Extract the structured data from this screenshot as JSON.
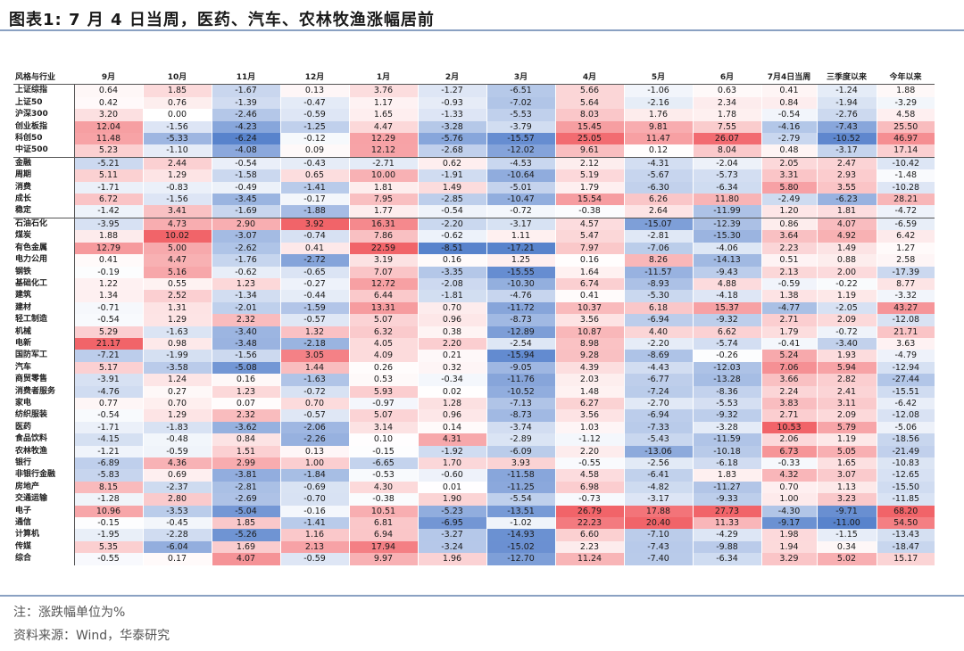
{
  "title": "图表1:  7 月  4 日当周，医药、汽车、农林牧渔涨幅居前",
  "note": "注：涨跌幅单位为%",
  "source": "资料来源：Wind，华泰研究",
  "chart_data": {
    "type": "heatmap",
    "row_header": "风格与行业",
    "columns": [
      "9月",
      "10月",
      "11月",
      "12月",
      "1月",
      "2月",
      "3月",
      "4月",
      "5月",
      "6月",
      "7月4日当周",
      "三季度以来",
      "今年以来"
    ],
    "rows": [
      {
        "name": "上证综指",
        "values": [
          0.64,
          1.85,
          -1.67,
          0.13,
          3.76,
          -1.27,
          -6.51,
          5.66,
          -1.06,
          0.63,
          0.41,
          -1.24,
          1.88
        ]
      },
      {
        "name": "上证50",
        "values": [
          0.42,
          0.76,
          -1.39,
          -0.47,
          1.17,
          -0.93,
          -7.02,
          5.64,
          -2.16,
          2.34,
          0.84,
          -1.94,
          -3.29
        ]
      },
      {
        "name": "沪深300",
        "values": [
          3.2,
          0.0,
          -2.46,
          -0.59,
          1.65,
          -1.33,
          -5.53,
          8.03,
          1.76,
          1.78,
          -0.54,
          -2.76,
          4.58
        ]
      },
      {
        "name": "创业板指",
        "values": [
          12.04,
          -1.56,
          -4.23,
          -1.25,
          4.47,
          -3.28,
          -3.79,
          15.45,
          9.81,
          7.55,
          -4.16,
          -7.43,
          25.5
        ]
      },
      {
        "name": "科创50",
        "values": [
          11.48,
          -5.33,
          -6.24,
          -0.12,
          12.29,
          -5.76,
          -15.57,
          25.05,
          11.47,
          26.07,
          -2.79,
          -10.52,
          46.97
        ]
      },
      {
        "name": "中证500",
        "values": [
          5.23,
          -1.1,
          -4.08,
          0.09,
          12.12,
          -2.68,
          -12.02,
          9.61,
          0.12,
          8.04,
          0.48,
          -3.17,
          17.14
        ]
      },
      {
        "name": "金融",
        "values": [
          -5.21,
          2.44,
          -0.54,
          -0.43,
          -2.71,
          0.62,
          -4.53,
          2.12,
          -4.31,
          -2.04,
          2.05,
          2.47,
          -10.42
        ]
      },
      {
        "name": "周期",
        "values": [
          5.11,
          1.29,
          -1.58,
          0.65,
          10.0,
          -1.91,
          -10.64,
          5.19,
          -5.67,
          -5.73,
          3.31,
          2.93,
          -1.48
        ]
      },
      {
        "name": "消费",
        "values": [
          -1.71,
          -0.83,
          -0.49,
          -1.41,
          1.81,
          1.49,
          -5.01,
          1.79,
          -6.3,
          -6.34,
          5.8,
          3.55,
          -10.28
        ]
      },
      {
        "name": "成长",
        "values": [
          6.72,
          -1.56,
          -3.45,
          -0.17,
          7.95,
          -2.85,
          -10.47,
          15.54,
          6.26,
          11.8,
          -2.49,
          -6.23,
          28.21
        ]
      },
      {
        "name": "稳定",
        "values": [
          -1.42,
          3.41,
          -1.69,
          -1.88,
          1.77,
          -0.54,
          -0.72,
          -0.38,
          2.64,
          -11.99,
          1.2,
          1.81,
          -4.72
        ]
      },
      {
        "name": "石油石化",
        "values": [
          -3.95,
          4.73,
          2.9,
          3.92,
          16.31,
          -2.2,
          -3.17,
          4.57,
          -15.07,
          -12.39,
          0.86,
          4.07,
          -6.59
        ]
      },
      {
        "name": "煤炭",
        "values": [
          1.88,
          10.02,
          -3.07,
          -0.74,
          7.86,
          -0.62,
          1.11,
          5.47,
          -2.81,
          -15.3,
          3.64,
          4.92,
          6.42
        ]
      },
      {
        "name": "有色金属",
        "values": [
          12.79,
          5.0,
          -2.62,
          0.41,
          22.59,
          -8.51,
          -17.21,
          7.97,
          -7.06,
          -4.06,
          2.23,
          1.49,
          1.27
        ]
      },
      {
        "name": "电力公用",
        "values": [
          0.41,
          4.47,
          -1.76,
          -2.72,
          3.19,
          0.16,
          1.25,
          0.16,
          8.26,
          -14.13,
          0.51,
          0.88,
          2.58
        ]
      },
      {
        "name": "钢铁",
        "values": [
          -0.19,
          5.16,
          -0.62,
          -0.65,
          7.07,
          -3.35,
          -15.55,
          1.64,
          -11.57,
          -9.43,
          2.13,
          2.0,
          -17.39
        ]
      },
      {
        "name": "基础化工",
        "values": [
          1.22,
          0.55,
          1.23,
          -0.27,
          12.72,
          -2.08,
          -10.3,
          6.74,
          -8.93,
          4.88,
          -0.59,
          -0.22,
          8.77
        ]
      },
      {
        "name": "建筑",
        "values": [
          1.34,
          2.52,
          -1.34,
          -0.44,
          6.44,
          -1.81,
          -4.76,
          0.41,
          -5.3,
          -4.18,
          1.38,
          1.19,
          -3.32
        ]
      },
      {
        "name": "建材",
        "values": [
          -0.71,
          1.31,
          -2.01,
          -1.59,
          13.31,
          0.7,
          -11.72,
          10.37,
          6.18,
          15.37,
          -4.77,
          -2.05,
          43.27
        ]
      },
      {
        "name": "轻工制造",
        "values": [
          -0.54,
          1.29,
          2.32,
          -0.57,
          5.07,
          0.96,
          -8.73,
          3.56,
          -6.94,
          -9.32,
          2.71,
          2.09,
          -12.08
        ]
      },
      {
        "name": "机械",
        "values": [
          5.29,
          -1.63,
          -3.4,
          1.32,
          6.32,
          0.38,
          -12.89,
          10.87,
          4.4,
          6.62,
          1.79,
          -0.72,
          21.71
        ]
      },
      {
        "name": "电新",
        "values": [
          21.17,
          0.98,
          -3.48,
          -2.18,
          4.05,
          2.2,
          -2.54,
          8.98,
          -2.2,
          -5.74,
          -0.41,
          -3.4,
          3.63
        ]
      },
      {
        "name": "国防军工",
        "values": [
          -7.21,
          -1.99,
          -1.56,
          3.05,
          4.09,
          0.21,
          -15.94,
          9.28,
          -8.69,
          -0.26,
          5.24,
          1.93,
          -4.79
        ]
      },
      {
        "name": "汽车",
        "values": [
          5.17,
          -3.58,
          -5.08,
          1.44,
          0.26,
          0.32,
          -9.05,
          4.39,
          -4.43,
          -12.03,
          7.06,
          5.94,
          -12.94
        ]
      },
      {
        "name": "商贸零售",
        "values": [
          -3.91,
          1.24,
          0.16,
          -1.63,
          0.53,
          -0.34,
          -11.76,
          2.03,
          -6.77,
          -13.28,
          3.66,
          2.82,
          -27.44
        ]
      },
      {
        "name": "消费者服务",
        "values": [
          -4.76,
          0.27,
          1.23,
          -0.72,
          5.93,
          0.02,
          -10.52,
          1.48,
          -7.24,
          -8.36,
          2.24,
          2.41,
          -15.51
        ]
      },
      {
        "name": "家电",
        "values": [
          0.77,
          0.7,
          0.07,
          0.7,
          -0.97,
          1.28,
          -7.13,
          6.27,
          -2.7,
          -5.53,
          3.83,
          3.11,
          -6.42
        ]
      },
      {
        "name": "纺织服装",
        "values": [
          -0.54,
          1.29,
          2.32,
          -0.57,
          5.07,
          0.96,
          -8.73,
          3.56,
          -6.94,
          -9.32,
          2.71,
          2.09,
          -12.08
        ]
      },
      {
        "name": "医药",
        "values": [
          -1.71,
          -1.83,
          -3.62,
          -2.06,
          3.14,
          0.14,
          -3.74,
          1.03,
          -7.33,
          -3.28,
          10.53,
          5.79,
          -5.06
        ]
      },
      {
        "name": "食品饮料",
        "values": [
          -4.15,
          -0.48,
          0.84,
          -2.26,
          0.1,
          4.31,
          -2.89,
          -1.12,
          -5.43,
          -11.59,
          2.06,
          1.19,
          -18.56
        ]
      },
      {
        "name": "农林牧渔",
        "values": [
          -1.21,
          -0.59,
          1.51,
          0.13,
          -0.15,
          -1.92,
          -6.09,
          2.2,
          -13.06,
          -10.18,
          6.73,
          5.05,
          -21.49
        ]
      },
      {
        "name": "银行",
        "values": [
          -6.89,
          4.36,
          2.99,
          1.0,
          -6.65,
          1.7,
          3.93,
          -0.55,
          -2.56,
          -6.18,
          -0.33,
          1.65,
          -10.83
        ]
      },
      {
        "name": "非银行金融",
        "values": [
          -5.83,
          0.69,
          -3.81,
          -1.84,
          -0.53,
          -0.6,
          -11.58,
          4.58,
          -6.41,
          1.83,
          4.32,
          3.07,
          -12.65
        ]
      },
      {
        "name": "房地产",
        "values": [
          8.15,
          -2.37,
          -2.81,
          -0.69,
          4.3,
          0.01,
          -11.25,
          6.98,
          -4.82,
          -11.27,
          0.7,
          1.13,
          -15.5
        ]
      },
      {
        "name": "交通运输",
        "values": [
          -1.28,
          2.8,
          -2.69,
          -0.7,
          -0.38,
          1.9,
          -5.54,
          -0.73,
          -3.17,
          -9.33,
          1.0,
          3.23,
          -11.85
        ]
      },
      {
        "name": "电子",
        "values": [
          10.96,
          -3.53,
          -5.04,
          -0.16,
          10.51,
          -5.23,
          -13.51,
          26.79,
          17.88,
          27.73,
          -4.3,
          -9.71,
          68.2
        ]
      },
      {
        "name": "通信",
        "values": [
          -0.15,
          -0.45,
          1.85,
          -1.41,
          6.81,
          -6.95,
          -1.02,
          22.23,
          20.4,
          11.33,
          -9.17,
          -11.0,
          54.5
        ]
      },
      {
        "name": "计算机",
        "values": [
          -1.95,
          -2.28,
          -5.26,
          1.16,
          6.94,
          -3.27,
          -14.93,
          6.6,
          -7.1,
          -4.29,
          1.98,
          -1.15,
          -13.43
        ]
      },
      {
        "name": "传媒",
        "values": [
          5.35,
          -6.04,
          1.69,
          2.13,
          17.94,
          -3.24,
          -15.02,
          2.23,
          -7.43,
          -9.88,
          1.94,
          0.34,
          -18.47
        ]
      },
      {
        "name": "综合",
        "values": [
          -0.55,
          0.17,
          4.07,
          -0.59,
          9.97,
          1.96,
          -12.7,
          11.24,
          -7.4,
          -6.34,
          3.29,
          5.02,
          15.17
        ]
      }
    ],
    "group_ends": [
      5,
      10
    ],
    "color_positive": "#f0565c",
    "color_negative": "#4a78c8",
    "color_neutral": "#ffffff"
  }
}
